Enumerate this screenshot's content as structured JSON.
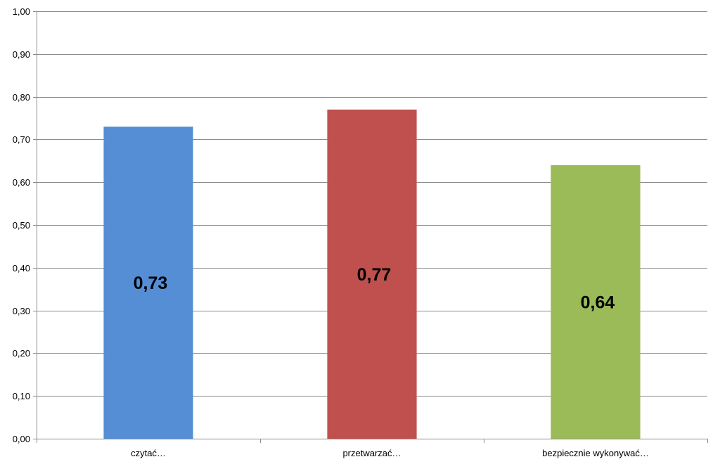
{
  "chart_data": {
    "type": "bar",
    "categories": [
      "czytać…",
      "przetwarzać…",
      "bezpiecznie wykonywać…"
    ],
    "values": [
      0.73,
      0.77,
      0.64
    ],
    "value_labels": [
      "0,73",
      "0,77",
      "0,64"
    ],
    "bar_colors": [
      "#558ed5",
      "#c0504d",
      "#9bbb59"
    ],
    "y_ticks": [
      0,
      0.1,
      0.2,
      0.3,
      0.4,
      0.5,
      0.6,
      0.7,
      0.8,
      0.9,
      1.0
    ],
    "y_tick_labels": [
      "0,00",
      "0,10",
      "0,20",
      "0,30",
      "0,40",
      "0,50",
      "0,60",
      "0,70",
      "0,80",
      "0,90",
      "1,00"
    ],
    "ylim": [
      0,
      1.0
    ],
    "grid": true,
    "legend": "none",
    "title": "",
    "xlabel": "",
    "ylabel": ""
  }
}
